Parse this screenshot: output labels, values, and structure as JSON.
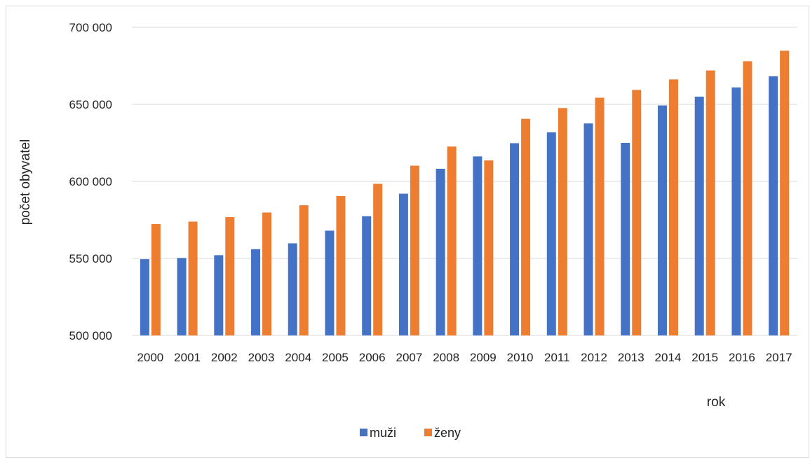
{
  "chart_data": {
    "type": "bar",
    "title": "",
    "xlabel": "rok",
    "ylabel": "počet obyvatel",
    "ylim": [
      500000,
      700000
    ],
    "y_ticks": [
      500000,
      550000,
      600000,
      650000,
      700000
    ],
    "y_tick_labels": [
      "500 000",
      "550 000",
      "600 000",
      "650 000",
      "700 000"
    ],
    "grid": true,
    "legend_position": "bottom",
    "categories": [
      "2000",
      "2001",
      "2002",
      "2003",
      "2004",
      "2005",
      "2006",
      "2007",
      "2008",
      "2009",
      "2010",
      "2011",
      "2012",
      "2013",
      "2014",
      "2015",
      "2016",
      "2017"
    ],
    "series": [
      {
        "name": "muži",
        "color": "#4472c4",
        "values": [
          549500,
          550300,
          552100,
          556000,
          559800,
          568000,
          577400,
          592000,
          608200,
          616200,
          624800,
          631800,
          637600,
          625000,
          649300,
          655000,
          661000,
          668200
        ]
      },
      {
        "name": "ženy",
        "color": "#ed7d31",
        "values": [
          572300,
          573900,
          576800,
          579800,
          584500,
          590500,
          598400,
          610200,
          622600,
          613600,
          640600,
          647600,
          654300,
          659400,
          666200,
          672000,
          678000,
          684800
        ]
      }
    ]
  }
}
